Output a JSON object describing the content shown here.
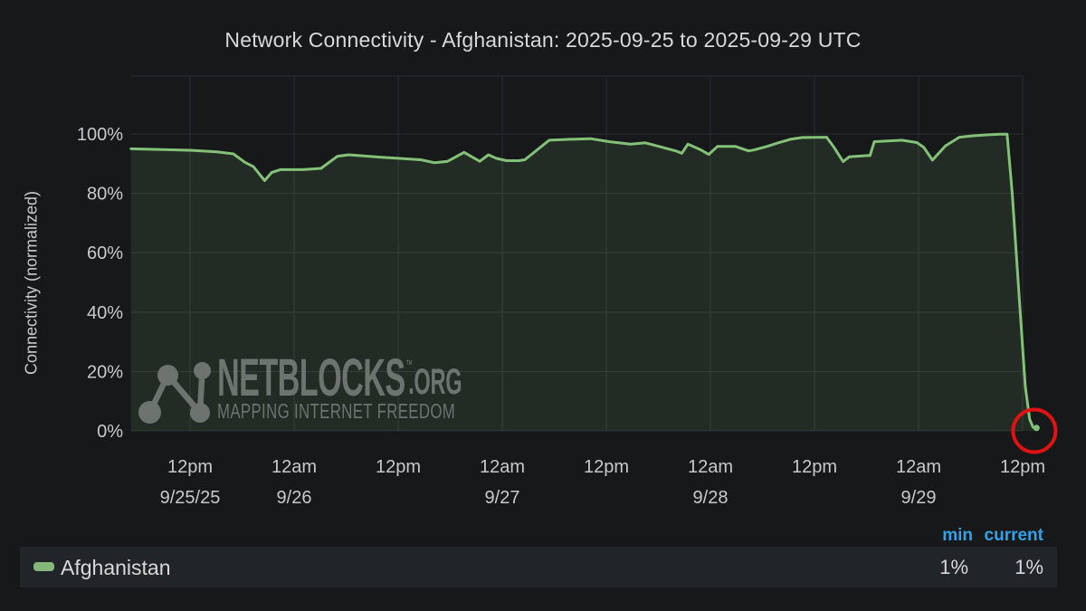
{
  "title": "Network Connectivity - Afghanistan: 2025-09-25 to 2025-09-29 UTC",
  "watermark": {
    "name": "NETBLOCKS",
    "tm": "™",
    "org": ".ORG",
    "tagline": "MAPPING INTERNET FREEDOM"
  },
  "chart_data": {
    "type": "area",
    "title": "Network Connectivity - Afghanistan: 2025-09-25 to 2025-09-29 UTC",
    "xlabel": "",
    "ylabel": "Connectivity (normalized)",
    "ylim": [
      0,
      100
    ],
    "y_ticks": [
      "0%",
      "20%",
      "40%",
      "60%",
      "80%",
      "100%"
    ],
    "x_unit": "hours since 2025-09-25 00:00 UTC",
    "x_ticks": [
      {
        "t": 12,
        "time": "12pm",
        "date": "9/25/25"
      },
      {
        "t": 24,
        "time": "12am",
        "date": "9/26"
      },
      {
        "t": 36,
        "time": "12pm",
        "date": ""
      },
      {
        "t": 48,
        "time": "12am",
        "date": "9/27"
      },
      {
        "t": 60,
        "time": "12pm",
        "date": ""
      },
      {
        "t": 72,
        "time": "12am",
        "date": "9/28"
      },
      {
        "t": 84,
        "time": "12pm",
        "date": ""
      },
      {
        "t": 96,
        "time": "12am",
        "date": "9/29"
      },
      {
        "t": 108,
        "time": "12pm",
        "date": ""
      }
    ],
    "series": [
      {
        "name": "Afghanistan",
        "color": "#84c178",
        "fill": "rgba(126,184,111,0.13)",
        "points": [
          [
            5.2,
            95
          ],
          [
            12,
            94.5
          ],
          [
            15.1,
            94
          ],
          [
            17,
            93.3
          ],
          [
            18.3,
            90.5
          ],
          [
            19.3,
            89
          ],
          [
            20.6,
            84.3
          ],
          [
            21.4,
            87
          ],
          [
            22.4,
            88
          ],
          [
            25,
            88
          ],
          [
            27.1,
            88.4
          ],
          [
            29,
            92.5
          ],
          [
            30.3,
            93
          ],
          [
            33.9,
            92.2
          ],
          [
            36,
            91.8
          ],
          [
            38.6,
            91.3
          ],
          [
            40.2,
            90.3
          ],
          [
            41.7,
            90.8
          ],
          [
            43.6,
            93.8
          ],
          [
            45.4,
            90.8
          ],
          [
            46.4,
            93
          ],
          [
            47.3,
            91.8
          ],
          [
            48.5,
            91
          ],
          [
            49.9,
            91
          ],
          [
            50.6,
            91.3
          ],
          [
            53.4,
            97.9
          ],
          [
            55.8,
            98.2
          ],
          [
            58.2,
            98.4
          ],
          [
            60.3,
            97.4
          ],
          [
            62.8,
            96.6
          ],
          [
            64.5,
            97
          ],
          [
            68,
            94.3
          ],
          [
            68.7,
            93.5
          ],
          [
            69.4,
            96.6
          ],
          [
            70.8,
            94.8
          ],
          [
            71.8,
            93.1
          ],
          [
            72.8,
            95.8
          ],
          [
            74.9,
            95.8
          ],
          [
            75.7,
            95
          ],
          [
            76.4,
            94.3
          ],
          [
            77,
            94.6
          ],
          [
            78.5,
            95.8
          ],
          [
            79.8,
            97
          ],
          [
            81.2,
            98.2
          ],
          [
            82.6,
            98.8
          ],
          [
            85.4,
            98.9
          ],
          [
            86.3,
            95.3
          ],
          [
            87.3,
            90.7
          ],
          [
            88,
            92.3
          ],
          [
            90,
            92.7
          ],
          [
            90.4,
            92.7
          ],
          [
            90.9,
            97.4
          ],
          [
            94.1,
            97.9
          ],
          [
            95.8,
            97.1
          ],
          [
            96.6,
            95.5
          ],
          [
            97.6,
            91.2
          ],
          [
            99.1,
            96
          ],
          [
            100.7,
            98.9
          ],
          [
            102.3,
            99.4
          ],
          [
            103.8,
            99.7
          ],
          [
            105.4,
            99.9
          ],
          [
            106.2,
            99.9
          ],
          [
            106.8,
            80
          ],
          [
            107.6,
            45
          ],
          [
            108.3,
            15
          ],
          [
            108.8,
            4
          ],
          [
            109.2,
            1.2
          ],
          [
            109.6,
            1
          ]
        ]
      }
    ],
    "annotation": {
      "type": "circle",
      "t": 109.35,
      "v": 0,
      "radius_px": 23.5,
      "color": "#e01212"
    },
    "min": "1%",
    "current": "1%"
  },
  "legend": {
    "columns": [
      "min",
      "current"
    ],
    "series": [
      {
        "label": "Afghanistan",
        "min": "1%",
        "current": "1%",
        "color": "#83b878"
      }
    ]
  }
}
